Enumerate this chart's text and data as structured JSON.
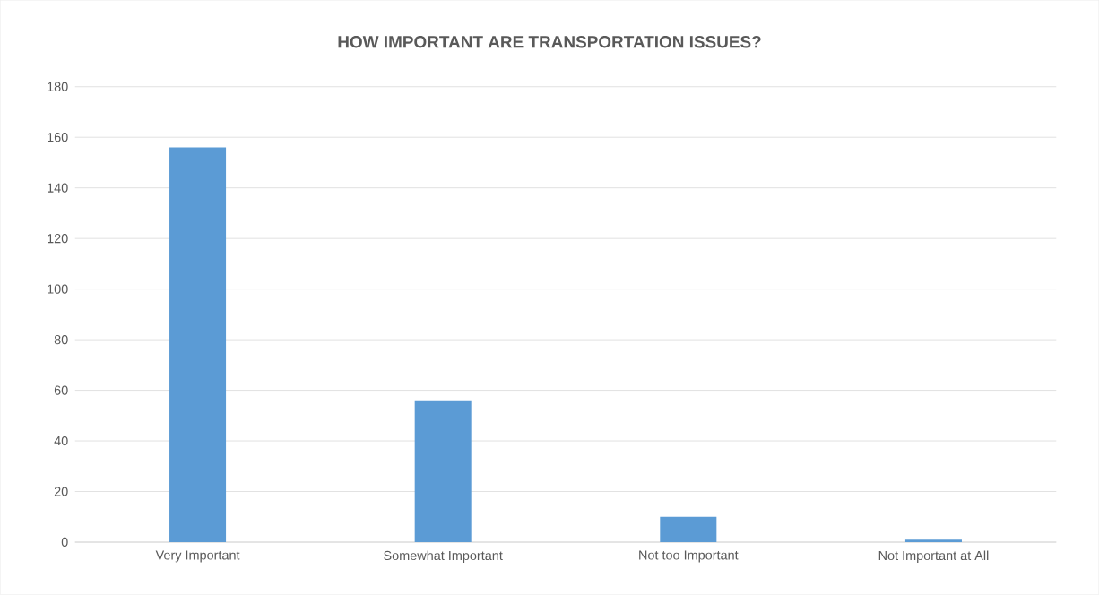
{
  "chart_data": {
    "type": "bar",
    "title": "HOW IMPORTANT ARE TRANSPORTATION ISSUES?",
    "categories": [
      "Very Important",
      "Somewhat Important",
      "Not too Important",
      "Not Important at All"
    ],
    "values": [
      156,
      56,
      10,
      1
    ],
    "color": "#5b9bd5",
    "ylim": [
      0,
      180
    ],
    "yticks": [
      0,
      20,
      40,
      60,
      80,
      100,
      120,
      140,
      160,
      180
    ],
    "grid": "y"
  }
}
